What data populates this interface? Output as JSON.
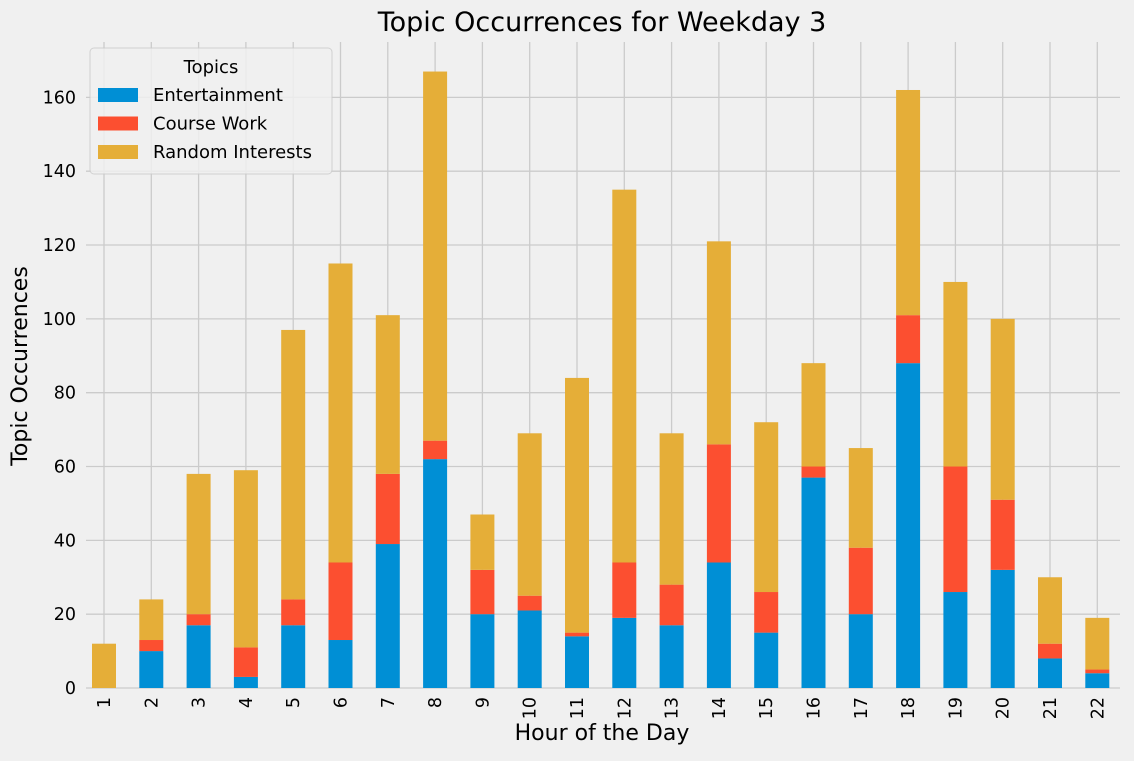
{
  "chart_data": {
    "type": "bar",
    "stacked": true,
    "title": "Topic Occurrences for Weekday 3",
    "xlabel": "Hour of the Day",
    "ylabel": "Topic Occurrences",
    "ylim": [
      0,
      175
    ],
    "yticks": [
      0,
      20,
      40,
      60,
      80,
      100,
      120,
      140,
      160
    ],
    "grid": true,
    "legend_title": "Topics",
    "legend_position": "top-left",
    "categories": [
      "1",
      "2",
      "3",
      "4",
      "5",
      "6",
      "7",
      "8",
      "9",
      "10",
      "11",
      "12",
      "13",
      "14",
      "15",
      "16",
      "17",
      "18",
      "19",
      "20",
      "21",
      "22"
    ],
    "series": [
      {
        "name": "Entertainment",
        "color": "#008fd5",
        "values": [
          0,
          10,
          17,
          3,
          17,
          13,
          39,
          62,
          20,
          21,
          14,
          19,
          17,
          34,
          15,
          57,
          20,
          88,
          26,
          32,
          8,
          4
        ]
      },
      {
        "name": "Course Work",
        "color": "#fc4f30",
        "values": [
          0,
          3,
          3,
          8,
          7,
          21,
          19,
          5,
          12,
          4,
          1,
          15,
          11,
          32,
          11,
          3,
          18,
          13,
          34,
          19,
          4,
          1
        ]
      },
      {
        "name": "Random Interests",
        "color": "#e5ae38",
        "values": [
          12,
          11,
          38,
          48,
          73,
          81,
          43,
          100,
          15,
          44,
          69,
          101,
          41,
          55,
          46,
          28,
          27,
          61,
          50,
          49,
          18,
          14
        ]
      }
    ]
  }
}
